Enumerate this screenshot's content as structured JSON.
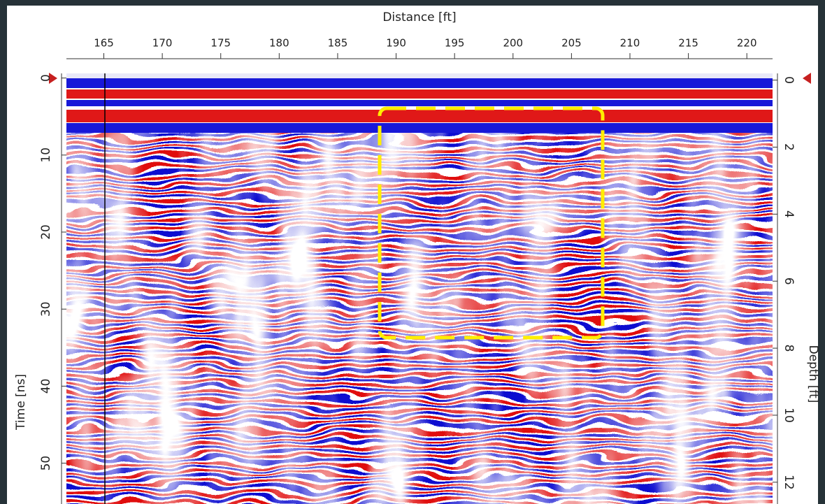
{
  "chart_data": {
    "type": "radargram",
    "xlabel": "Distance [ft]",
    "ylabel": "Time [ns]",
    "y2label": "Depth [ft]",
    "xlim": [
      161.8,
      222.2
    ],
    "xticks": [
      165,
      170,
      175,
      180,
      185,
      190,
      195,
      200,
      205,
      210,
      215,
      220
    ],
    "ylim": [
      -0.6,
      55.3
    ],
    "yticks": [
      0,
      10,
      20,
      30,
      40,
      50
    ],
    "y2lim": [
      -0.2,
      12.65
    ],
    "y2ticks": [
      0,
      2,
      4,
      6,
      8,
      10,
      12
    ]
  }
}
